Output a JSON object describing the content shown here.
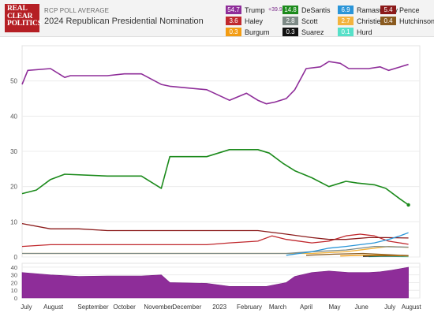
{
  "header": {
    "logo_lines": [
      "REAL",
      "CLEAR",
      "POLITICS"
    ],
    "subtitle": "RCP POLL AVERAGE",
    "title": "2024 Republican Presidential Nomination"
  },
  "legend": [
    {
      "value": "54.7",
      "name": "Trump",
      "color": "#8e2d99",
      "spread": "+39.9"
    },
    {
      "value": "14.8",
      "name": "DeSantis",
      "color": "#1b8a1b"
    },
    {
      "value": "6.9",
      "name": "Ramaswamy",
      "color": "#2a95d8"
    },
    {
      "value": "5.4",
      "name": "Pence",
      "color": "#8b1a1a"
    },
    {
      "value": "3.6",
      "name": "Haley",
      "color": "#c0282d"
    },
    {
      "value": "2.8",
      "name": "Scott",
      "color": "#7d8a86"
    },
    {
      "value": "2.7",
      "name": "Christie",
      "color": "#f3b33d"
    },
    {
      "value": "0.4",
      "name": "Hutchinson",
      "color": "#8a5a1f"
    },
    {
      "value": "0.3",
      "name": "Burgum",
      "color": "#f39c12"
    },
    {
      "value": "0.3",
      "name": "Suarez",
      "color": "#111111"
    },
    {
      "value": "0.1",
      "name": "Hurd",
      "color": "#56e0c8"
    }
  ],
  "chart_data": {
    "type": "line",
    "x_labels": [
      "July",
      "August",
      "September",
      "October",
      "November",
      "December",
      "2023",
      "February",
      "March",
      "April",
      "May",
      "June",
      "July",
      "August"
    ],
    "ylim": [
      0,
      60
    ],
    "yticks": [
      0,
      10,
      20,
      30,
      40,
      50
    ],
    "grid": true,
    "series": [
      {
        "name": "Trump",
        "color": "#8e2d99",
        "x": [
          0,
          0.2,
          1,
          1.5,
          1.7,
          3,
          3.6,
          4.2,
          4.9,
          5.2,
          6.5,
          7.3,
          7.9,
          8.3,
          8.6,
          8.9,
          9.3,
          9.6,
          10.0,
          10.5,
          10.8,
          11.2,
          11.5,
          12.2,
          12.6,
          12.9,
          13.6
        ],
        "y": [
          49,
          53,
          53.5,
          51,
          51.5,
          51.5,
          52,
          52,
          49,
          48.5,
          47.5,
          44.5,
          46.5,
          44.5,
          43.5,
          44,
          45,
          47.5,
          53.5,
          54,
          55.5,
          55,
          53.5,
          53.5,
          54,
          53,
          54.7
        ]
      },
      {
        "name": "DeSantis",
        "color": "#1b8a1b",
        "x": [
          0,
          0.5,
          1,
          1.5,
          3,
          3.3,
          4.2,
          4.9,
          5.2,
          6.5,
          7.3,
          7.8,
          8.3,
          8.7,
          9.2,
          9.6,
          10.2,
          10.8,
          11.4,
          11.8,
          12.4,
          12.8,
          13.3,
          13.6
        ],
        "y": [
          18,
          19,
          22,
          23.5,
          23,
          23,
          23,
          19.5,
          28.5,
          28.5,
          30.5,
          30.5,
          30.5,
          29.5,
          26.5,
          24.5,
          22.5,
          20,
          21.5,
          21,
          20.5,
          19.5,
          16.5,
          14.8
        ]
      },
      {
        "name": "Ramaswamy",
        "color": "#2a95d8",
        "x": [
          9.3,
          10.2,
          10.8,
          11.4,
          11.9,
          12.4,
          12.9,
          13.3,
          13.6
        ],
        "y": [
          0.5,
          1.5,
          2.5,
          3,
          3.5,
          4,
          5,
          6,
          6.9
        ]
      },
      {
        "name": "Pence",
        "color": "#8b1a1a",
        "x": [
          0,
          1,
          2,
          3,
          4.2,
          5.2,
          6.5,
          7.3,
          8.3,
          9.3,
          10.2,
          10.8,
          11.4,
          12.2,
          12.8,
          13.6
        ],
        "y": [
          9.5,
          8,
          8,
          7.5,
          7.5,
          7.5,
          7.5,
          7.5,
          7.5,
          6.5,
          5.5,
          5,
          5,
          5.5,
          5.5,
          5.4
        ]
      },
      {
        "name": "Haley",
        "color": "#c0282d",
        "x": [
          0,
          1,
          2,
          3,
          4.2,
          5.2,
          6.5,
          7.3,
          8.3,
          8.8,
          9.3,
          10.2,
          10.8,
          11.4,
          11.9,
          12.4,
          12.9,
          13.3,
          13.6
        ],
        "y": [
          3,
          3.5,
          3.5,
          3.5,
          3.5,
          3.5,
          3.5,
          4,
          4.5,
          6,
          5,
          4,
          4.5,
          6,
          6.5,
          6,
          4.5,
          4,
          3.6
        ]
      },
      {
        "name": "Scott",
        "color": "#7d8a86",
        "x": [
          0,
          1,
          3,
          6.5,
          8.3,
          9.3,
          10.2,
          11.4,
          12.4,
          13.6
        ],
        "y": [
          1,
          1,
          1,
          1,
          1,
          1,
          1.5,
          2,
          3,
          2.8
        ]
      },
      {
        "name": "Christie",
        "color": "#f3b33d",
        "x": [
          0,
          1,
          3,
          6.5,
          8.3,
          9.3,
          10.2,
          11.4,
          12.4,
          12.9,
          13.6
        ],
        "y": [
          1,
          1,
          1,
          1,
          1,
          1,
          1,
          1.5,
          2.5,
          3,
          2.7
        ]
      },
      {
        "name": "Hutchinson",
        "color": "#8a5a1f",
        "x": [
          10.0,
          11.0,
          12.0,
          13.0,
          13.6
        ],
        "y": [
          0.5,
          0.8,
          1,
          0.6,
          0.4
        ]
      },
      {
        "name": "Burgum",
        "color": "#f39c12",
        "x": [
          11.2,
          12.0,
          12.8,
          13.6
        ],
        "y": [
          0.3,
          0.5,
          0.5,
          0.3
        ]
      },
      {
        "name": "Suarez",
        "color": "#111111",
        "x": [
          12.0,
          12.6,
          13.2,
          13.6
        ],
        "y": [
          0.2,
          0.3,
          0.3,
          0.3
        ]
      },
      {
        "name": "Hurd",
        "color": "#56e0c8",
        "x": [
          12.2,
          12.8,
          13.6
        ],
        "y": [
          0.1,
          0.2,
          0.1
        ]
      }
    ],
    "spread_chart": {
      "yticks": [
        0,
        10,
        20,
        30,
        40
      ],
      "ylim": [
        0,
        45
      ],
      "x": [
        0,
        1,
        2,
        3,
        4.2,
        4.9,
        5.2,
        6.5,
        7.3,
        8.3,
        8.6,
        9.3,
        9.6,
        10.2,
        10.8,
        11.5,
        12.2,
        12.6,
        13.0,
        13.6
      ],
      "y": [
        33,
        30,
        28,
        28.5,
        28.5,
        30,
        20,
        19,
        15,
        15,
        15,
        20,
        28,
        33,
        35,
        33,
        33,
        34,
        36,
        39.9
      ]
    }
  }
}
